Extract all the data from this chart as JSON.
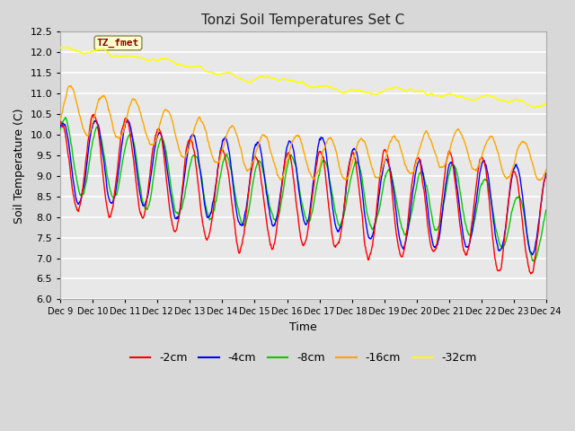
{
  "title": "Tonzi Soil Temperatures Set C",
  "xlabel": "Time",
  "ylabel": "Soil Temperature (C)",
  "ylim": [
    6.0,
    12.5
  ],
  "yticks": [
    6.0,
    6.5,
    7.0,
    7.5,
    8.0,
    8.5,
    9.0,
    9.5,
    10.0,
    10.5,
    11.0,
    11.5,
    12.0,
    12.5
  ],
  "fig_bg_color": "#d8d8d8",
  "plot_bg_color": "#e8e8e8",
  "grid_color": "#ffffff",
  "colors": {
    "-2cm": "#ff0000",
    "-4cm": "#0000ff",
    "-8cm": "#00cc00",
    "-16cm": "#ffa500",
    "-32cm": "#ffff00"
  },
  "label_box_facecolor": "#ffffcc",
  "label_box_edgecolor": "#888855",
  "label_text_color": "#8b0000",
  "label_text": "TZ_fmet",
  "x_tick_labels": [
    "Dec 9",
    "Dec 10",
    "Dec 11",
    "Dec 12",
    "Dec 13",
    "Dec 14",
    "Dec 15",
    "Dec 16",
    "Dec 17",
    "Dec 18",
    "Dec 19",
    "Dec 20",
    "Dec 21",
    "Dec 22",
    "Dec 23",
    "Dec 24"
  ],
  "n_points": 1440,
  "period_days": 1.0,
  "total_days": 15
}
